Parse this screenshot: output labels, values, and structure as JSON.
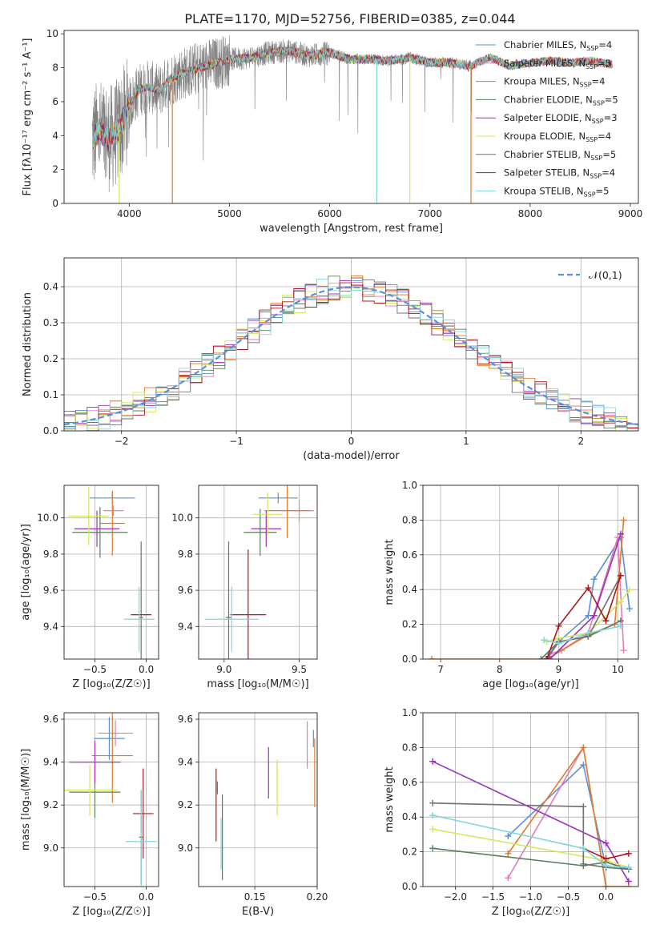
{
  "figure": {
    "title": "PLATE=1170, MJD=52756, FIBERID=0385, z=0.044"
  },
  "colors": {
    "Chabrier MILES": "#5b8fd8",
    "Salpeter MILES": "#e27eb4",
    "Kroupa MILES": "#e07a2a",
    "Chabrier ELODIE": "#5b7f5e",
    "Salpeter ELODIE": "#9b30b8",
    "Kroupa ELODIE": "#d4e85a",
    "Chabrier STELIB": "#707070",
    "Salpeter STELIB": "#b0171f",
    "Kroupa STELIB": "#7fd6dc",
    "normal": "#5b8fd8"
  },
  "chart_data": [
    {
      "id": "spectrum",
      "type": "line",
      "title": "PLATE=1170, MJD=52756, FIBERID=0385, z=0.044",
      "xlabel": "wavelength [Angstrom, rest frame]",
      "ylabel": "Flux [fλ10⁻¹⁷ erg cm⁻² s⁻¹ A⁻¹]",
      "xlim": [
        3350,
        9080
      ],
      "ylim": [
        0,
        10.2
      ],
      "xticks": [
        4000,
        5000,
        6000,
        7000,
        8000,
        9000
      ],
      "yticks": [
        0,
        2,
        4,
        6,
        8,
        10
      ],
      "legend_position": "top-right",
      "legend": [
        {
          "name": "Chabrier MILES",
          "n_ssp": "N",
          "sub": "SSP",
          "eq": "=4"
        },
        {
          "name": "Salpeter MILES",
          "n_ssp": "N",
          "sub": "SSP",
          "eq": "=5"
        },
        {
          "name": "Kroupa MILES",
          "n_ssp": "N",
          "sub": "SSP",
          "eq": "=4"
        },
        {
          "name": "Chabrier ELODIE",
          "n_ssp": "N",
          "sub": "SSP",
          "eq": "=5"
        },
        {
          "name": "Salpeter ELODIE",
          "n_ssp": "N",
          "sub": "SSP",
          "eq": "=3"
        },
        {
          "name": "Kroupa ELODIE",
          "n_ssp": "N",
          "sub": "SSP",
          "eq": "=4"
        },
        {
          "name": "Chabrier STELIB",
          "n_ssp": "N",
          "sub": "SSP",
          "eq": "=5"
        },
        {
          "name": "Salpeter STELIB",
          "n_ssp": "N",
          "sub": "SSP",
          "eq": "=4"
        },
        {
          "name": "Kroupa STELIB",
          "n_ssp": "N",
          "sub": "SSP",
          "eq": "=5"
        }
      ],
      "continuum": [
        [
          3620,
          3.6
        ],
        [
          3700,
          4.3
        ],
        [
          3800,
          3.8
        ],
        [
          3900,
          4.3
        ],
        [
          4000,
          5.8
        ],
        [
          4100,
          6.7
        ],
        [
          4200,
          6.9
        ],
        [
          4300,
          6.6
        ],
        [
          4400,
          7.3
        ],
        [
          4500,
          7.6
        ],
        [
          4700,
          8.0
        ],
        [
          4900,
          8.3
        ],
        [
          5000,
          8.5
        ],
        [
          5200,
          8.6
        ],
        [
          5400,
          8.9
        ],
        [
          5600,
          9.0
        ],
        [
          5800,
          8.7
        ],
        [
          6000,
          8.9
        ],
        [
          6200,
          8.5
        ],
        [
          6400,
          8.5
        ],
        [
          6600,
          8.4
        ],
        [
          6800,
          8.6
        ],
        [
          7000,
          8.3
        ],
        [
          7200,
          8.3
        ],
        [
          7400,
          8.1
        ],
        [
          7600,
          8.6
        ],
        [
          7800,
          8.1
        ],
        [
          8000,
          8.3
        ],
        [
          8200,
          8.4
        ],
        [
          8400,
          8.3
        ],
        [
          8600,
          8.4
        ],
        [
          8800,
          8.2
        ]
      ],
      "dropouts": [
        {
          "model": "Kroupa STELIB",
          "x": 6470
        },
        {
          "model": "Kroupa ELODIE",
          "x": 6800
        },
        {
          "model": "Kroupa MILES",
          "x": 7410
        },
        {
          "model": "Kroupa MILES",
          "x": 4430
        },
        {
          "model": "Kroupa ELODIE",
          "x": 3900
        }
      ]
    },
    {
      "id": "residual-histogram",
      "type": "histogram",
      "xlabel": "(data-model)/error",
      "ylabel": "Normed distribution",
      "xlim": [
        -2.5,
        2.5
      ],
      "ylim": [
        0,
        0.48
      ],
      "xticks": [
        -2,
        -1,
        0,
        1,
        2
      ],
      "yticks": [
        0.0,
        0.1,
        0.2,
        0.3,
        0.4
      ],
      "reference_curve": {
        "name": "𝒩(0,1)",
        "mean": 0,
        "sigma": 1
      },
      "legend_position": "top-right",
      "bin_width": 0.1
    },
    {
      "id": "age-vs-Z",
      "type": "errorbar",
      "xlabel": "Z [log₁₀(Z/Z☉)]",
      "ylabel": "age  [log₁₀(age/yr)]",
      "xlim": [
        -0.8,
        0.12
      ],
      "ylim": [
        9.22,
        10.18
      ],
      "xticks": [
        -0.5,
        0.0
      ],
      "yticks": [
        9.4,
        9.6,
        9.8,
        10.0
      ],
      "points": [
        {
          "model": "Chabrier MILES",
          "x": -0.33,
          "xe": 0.22,
          "y": 10.11,
          "ye": 0.03
        },
        {
          "model": "Salpeter MILES",
          "x": -0.32,
          "xe": 0.1,
          "y": 10.04,
          "ye": 0.03
        },
        {
          "model": "Kroupa MILES",
          "x": -0.33,
          "xe": 0.12,
          "y": 9.97,
          "ye": 0.18
        },
        {
          "model": "Chabrier ELODIE",
          "x": -0.45,
          "xe": 0.27,
          "y": 9.92,
          "ye": 0.14
        },
        {
          "model": "Salpeter ELODIE",
          "x": -0.48,
          "xe": 0.22,
          "y": 9.94,
          "ye": 0.1
        },
        {
          "model": "Kroupa ELODIE",
          "x": -0.56,
          "xe": 0.2,
          "y": 10.01,
          "ye": 0.16
        },
        {
          "model": "Chabrier STELIB",
          "x": -0.05,
          "xe": 0.02,
          "y": 9.45,
          "ye": 0.42
        },
        {
          "model": "Salpeter STELIB",
          "x": -0.05,
          "xe": 0.1,
          "y": 9.465,
          "ye": 0.0
        },
        {
          "model": "Kroupa STELIB",
          "x": -0.07,
          "xe": 0.15,
          "y": 9.44,
          "ye": 0.18
        }
      ]
    },
    {
      "id": "age-vs-mass",
      "type": "errorbar",
      "xlabel": "mass [log₁₀(M/M☉)]",
      "ylabel": "",
      "xlim": [
        8.83,
        9.62
      ],
      "ylim": [
        9.22,
        10.18
      ],
      "xticks": [
        9.0,
        9.5
      ],
      "yticks": [
        9.4,
        9.6,
        9.8,
        10.0
      ],
      "points": [
        {
          "model": "Chabrier MILES",
          "x": 9.36,
          "xe": 0.13,
          "y": 10.11,
          "ye": 0.03
        },
        {
          "model": "Salpeter MILES",
          "x": 9.5,
          "xe": 0.1,
          "y": 10.04,
          "ye": 0.06
        },
        {
          "model": "Kroupa MILES",
          "x": 9.42,
          "xe": 0.15,
          "y": 10.04,
          "ye": 0.15
        },
        {
          "model": "Chabrier ELODIE",
          "x": 9.24,
          "xe": 0.11,
          "y": 9.92,
          "ye": 0.13
        },
        {
          "model": "Salpeter ELODIE",
          "x": 9.28,
          "xe": 0.1,
          "y": 9.94,
          "ye": 0.1
        },
        {
          "model": "Kroupa ELODIE",
          "x": 9.29,
          "xe": 0.1,
          "y": 10.02,
          "ye": 0.12
        },
        {
          "model": "Chabrier STELIB",
          "x": 9.03,
          "xe": 0.02,
          "y": 9.45,
          "ye": 0.42
        },
        {
          "model": "Salpeter STELIB",
          "x": 9.16,
          "xe": 0.12,
          "y": 9.465,
          "ye": 0.36
        },
        {
          "model": "Kroupa STELIB",
          "x": 9.05,
          "xe": 0.18,
          "y": 9.44,
          "ye": 0.18
        }
      ]
    },
    {
      "id": "mass-weight-vs-age",
      "type": "line",
      "xlabel": "age  [log₁₀(age/yr)]",
      "ylabel": "mass weight",
      "xlim": [
        6.7,
        10.35
      ],
      "ylim": [
        0,
        1.0
      ],
      "xticks": [
        7,
        8,
        9,
        10
      ],
      "yticks": [
        0.0,
        0.2,
        0.4,
        0.6,
        0.8,
        1.0
      ],
      "series": [
        {
          "model": "Chabrier MILES",
          "x": [
            8.78,
            9.0,
            9.5,
            9.6,
            10.05,
            10.2
          ],
          "y": [
            0.0,
            0.1,
            0.25,
            0.46,
            0.7,
            0.29
          ]
        },
        {
          "model": "Salpeter MILES",
          "x": [
            8.85,
            9.05,
            9.5,
            10.0,
            10.1
          ],
          "y": [
            0.03,
            0.05,
            0.15,
            0.7,
            0.05
          ]
        },
        {
          "model": "Kroupa MILES",
          "x": [
            6.85,
            8.8,
            9.5,
            9.95,
            10.1
          ],
          "y": [
            0.0,
            0.0,
            0.14,
            0.2,
            0.8
          ]
        },
        {
          "model": "Chabrier ELODIE",
          "x": [
            8.7,
            9.0,
            9.5,
            10.05
          ],
          "y": [
            0.0,
            0.1,
            0.13,
            0.22
          ]
        },
        {
          "model": "Salpeter ELODIE",
          "x": [
            8.85,
            9.6,
            10.05
          ],
          "y": [
            0.0,
            0.25,
            0.72
          ]
        },
        {
          "model": "Kroupa ELODIE",
          "x": [
            8.8,
            9.0,
            9.5,
            10.05,
            10.2
          ],
          "y": [
            0.1,
            0.12,
            0.15,
            0.33,
            0.4
          ]
        },
        {
          "model": "Chabrier STELIB",
          "x": [
            8.8,
            9.0,
            9.5,
            10.05
          ],
          "y": [
            0.0,
            0.1,
            0.13,
            0.48
          ]
        },
        {
          "model": "Salpeter STELIB",
          "x": [
            8.8,
            9.0,
            9.5,
            9.8,
            10.05
          ],
          "y": [
            0.0,
            0.19,
            0.41,
            0.22,
            0.48
          ]
        },
        {
          "model": "Kroupa STELIB",
          "x": [
            8.75,
            9.0,
            9.5,
            10.05
          ],
          "y": [
            0.11,
            0.09,
            0.15,
            0.19
          ]
        }
      ]
    },
    {
      "id": "mass-vs-Z",
      "type": "errorbar",
      "xlabel": "Z [log₁₀(Z/Z☉)]",
      "ylabel": "mass [log₁₀(M/M☉)]",
      "xlim": [
        -0.8,
        0.12
      ],
      "ylim": [
        8.82,
        9.63
      ],
      "xticks": [
        -0.5,
        0.0
      ],
      "yticks": [
        9.0,
        9.2,
        9.4,
        9.6
      ],
      "points": [
        {
          "model": "Chabrier MILES",
          "x": -0.36,
          "xe": 0.15,
          "y": 9.51,
          "ye": 0.1
        },
        {
          "model": "Salpeter MILES",
          "x": -0.3,
          "xe": 0.17,
          "y": 9.535,
          "ye": 0.06
        },
        {
          "model": "Kroupa MILES",
          "x": -0.33,
          "xe": 0.2,
          "y": 9.43,
          "ye": 0.22
        },
        {
          "model": "Chabrier ELODIE",
          "x": -0.5,
          "xe": 0.25,
          "y": 9.26,
          "ye": 0.12
        },
        {
          "model": "Salpeter ELODIE",
          "x": -0.5,
          "xe": 0.25,
          "y": 9.4,
          "ye": 0.1
        },
        {
          "model": "Kroupa ELODIE",
          "x": -0.55,
          "xe": 0.27,
          "y": 9.27,
          "ye": 0.12
        },
        {
          "model": "Chabrier STELIB",
          "x": -0.05,
          "xe": 0.02,
          "y": 9.05,
          "ye": 0.22
        },
        {
          "model": "Salpeter STELIB",
          "x": -0.03,
          "xe": 0.1,
          "y": 9.16,
          "ye": 0.21
        },
        {
          "model": "Kroupa STELIB",
          "x": -0.05,
          "xe": 0.15,
          "y": 9.03,
          "ye": 0.24
        }
      ]
    },
    {
      "id": "mass-vs-EBV",
      "type": "errorbar",
      "xlabel": "E(B-V)",
      "ylabel": "",
      "xlim": [
        0.105,
        0.2
      ],
      "ylim": [
        8.82,
        9.63
      ],
      "xticks": [
        0.15,
        0.2
      ],
      "yticks": [
        9.0,
        9.2,
        9.4,
        9.6
      ],
      "points": [
        {
          "model": "Chabrier MILES",
          "x": 0.197,
          "y": 9.51,
          "ye": 0.04
        },
        {
          "model": "Salpeter MILES",
          "x": 0.192,
          "y": 9.48,
          "ye": 0.11
        },
        {
          "model": "Kroupa MILES",
          "x": 0.198,
          "y": 9.35,
          "ye": 0.16
        },
        {
          "model": "Chabrier ELODIE",
          "x": 0.12,
          "y": 9.28,
          "ye": 0.03
        },
        {
          "model": "Salpeter ELODIE",
          "x": 0.161,
          "y": 9.35,
          "ye": 0.12
        },
        {
          "model": "Kroupa ELODIE",
          "x": 0.168,
          "y": 9.28,
          "ye": 0.13
        },
        {
          "model": "Chabrier STELIB",
          "x": 0.124,
          "y": 9.05,
          "ye": 0.2
        },
        {
          "model": "Salpeter STELIB",
          "x": 0.119,
          "y": 9.2,
          "ye": 0.17
        },
        {
          "model": "Kroupa STELIB",
          "x": 0.123,
          "y": 9.02,
          "ye": 0.12
        }
      ]
    },
    {
      "id": "mass-weight-vs-Z",
      "type": "line",
      "xlabel": "Z [log₁₀(Z/Z☉)]",
      "ylabel": "mass weight",
      "xlim": [
        -2.43,
        0.43
      ],
      "ylim": [
        0,
        1.0
      ],
      "xticks": [
        -2.0,
        -1.5,
        -1.0,
        -0.5,
        0.0
      ],
      "yticks": [
        0.0,
        0.2,
        0.4,
        0.6,
        0.8,
        1.0
      ],
      "series": [
        {
          "model": "Chabrier MILES",
          "x": [
            -1.3,
            -0.3,
            0.0,
            0.3
          ],
          "y": [
            0.29,
            0.7,
            0.11,
            0.1
          ]
        },
        {
          "model": "Salpeter MILES",
          "x": [
            -1.3,
            -0.3,
            0.0,
            0.3
          ],
          "y": [
            0.05,
            0.8,
            0.0,
            0.0
          ]
        },
        {
          "model": "Kroupa MILES",
          "x": [
            -1.3,
            -0.3,
            0.0,
            0.3
          ],
          "y": [
            0.19,
            0.8,
            0.0,
            0.0
          ]
        },
        {
          "model": "Chabrier ELODIE",
          "x": [
            -2.3,
            -0.3,
            0.0,
            0.3
          ],
          "y": [
            0.22,
            0.12,
            0.14,
            0.1
          ]
        },
        {
          "model": "Salpeter ELODIE",
          "x": [
            -2.3,
            0.0,
            0.3
          ],
          "y": [
            0.72,
            0.25,
            0.03
          ]
        },
        {
          "model": "Kroupa ELODIE",
          "x": [
            -2.3,
            0.0,
            0.3
          ],
          "y": [
            0.33,
            0.15,
            0.11
          ]
        },
        {
          "model": "Chabrier STELIB",
          "x": [
            -2.3,
            -0.3,
            -0.3,
            0.0,
            0.3
          ],
          "y": [
            0.48,
            0.46,
            0.13,
            0.11,
            0.1
          ]
        },
        {
          "model": "Salpeter STELIB",
          "x": [
            -0.3,
            0.0,
            0.3
          ],
          "y": [
            0.22,
            0.16,
            0.19
          ]
        },
        {
          "model": "Kroupa STELIB",
          "x": [
            -2.3,
            -0.3,
            0.0,
            0.3
          ],
          "y": [
            0.41,
            0.22,
            0.12,
            0.11
          ]
        }
      ]
    }
  ]
}
